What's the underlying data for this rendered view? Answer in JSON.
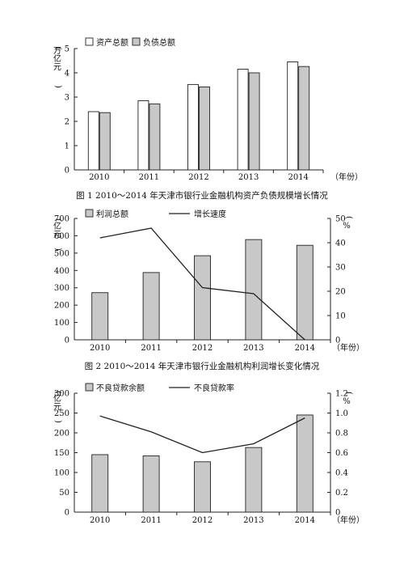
{
  "chart_data": [
    {
      "type": "bar",
      "categories": [
        "2010",
        "2011",
        "2012",
        "2013",
        "2014"
      ],
      "series": [
        {
          "name": "资产总额",
          "values": [
            2.4,
            2.85,
            3.52,
            4.15,
            4.45
          ],
          "color": "#ffffff"
        },
        {
          "name": "负债总额",
          "values": [
            2.36,
            2.72,
            3.42,
            4.0,
            4.26
          ],
          "color": "#c8c8c8"
        }
      ],
      "ylabel": "万亿元",
      "xlabel": "年份",
      "ylim": [
        0,
        5
      ],
      "yticks": [
        "0",
        "1",
        "2",
        "3",
        "4",
        "5"
      ],
      "legend": "top-left",
      "grid": false,
      "caption": "图 1 2010～2014 年天津市银行业金融机构资产负债规模增长情况"
    },
    {
      "type": "bar",
      "categories": [
        "2010",
        "2011",
        "2012",
        "2013",
        "2014"
      ],
      "series": [
        {
          "name": "利润总额",
          "values": [
            272,
            388,
            485,
            578,
            545
          ],
          "color": "#c8c8c8",
          "axis": "left"
        },
        {
          "name": "增长速度",
          "values": [
            42,
            46,
            21.5,
            19,
            0
          ],
          "type": "line",
          "axis": "right"
        }
      ],
      "ylabel": "亿元",
      "y2label": "%",
      "xlabel": "年份",
      "ylim": [
        0,
        700
      ],
      "y2lim": [
        0,
        50
      ],
      "yticks": [
        "0",
        "100",
        "200",
        "300",
        "400",
        "500",
        "600",
        "700"
      ],
      "y2ticks": [
        "0",
        "10",
        "20",
        "30",
        "40",
        "50"
      ],
      "legend": "top-left",
      "grid": false,
      "caption": "图 2 2010～2014 年天津市银行业金融机构利润增长变化情况"
    },
    {
      "type": "bar",
      "categories": [
        "2010",
        "2011",
        "2012",
        "2013",
        "2014"
      ],
      "series": [
        {
          "name": "不良贷款余额",
          "values": [
            145,
            142,
            127,
            163,
            245
          ],
          "color": "#c8c8c8",
          "axis": "left"
        },
        {
          "name": "不良贷款率",
          "values": [
            0.97,
            0.81,
            0.6,
            0.69,
            0.95
          ],
          "type": "line",
          "axis": "right"
        }
      ],
      "ylabel": "亿元",
      "y2label": "%",
      "xlabel": "年份",
      "ylim": [
        0,
        300
      ],
      "y2lim": [
        0,
        1.2
      ],
      "yticks": [
        "0",
        "50",
        "100",
        "150",
        "200",
        "250",
        "300"
      ],
      "y2ticks": [
        "0",
        "0.2",
        "0.4",
        "0.6",
        "0.8",
        "1.0",
        "1.2"
      ],
      "legend": "top-left",
      "grid": false
    }
  ]
}
